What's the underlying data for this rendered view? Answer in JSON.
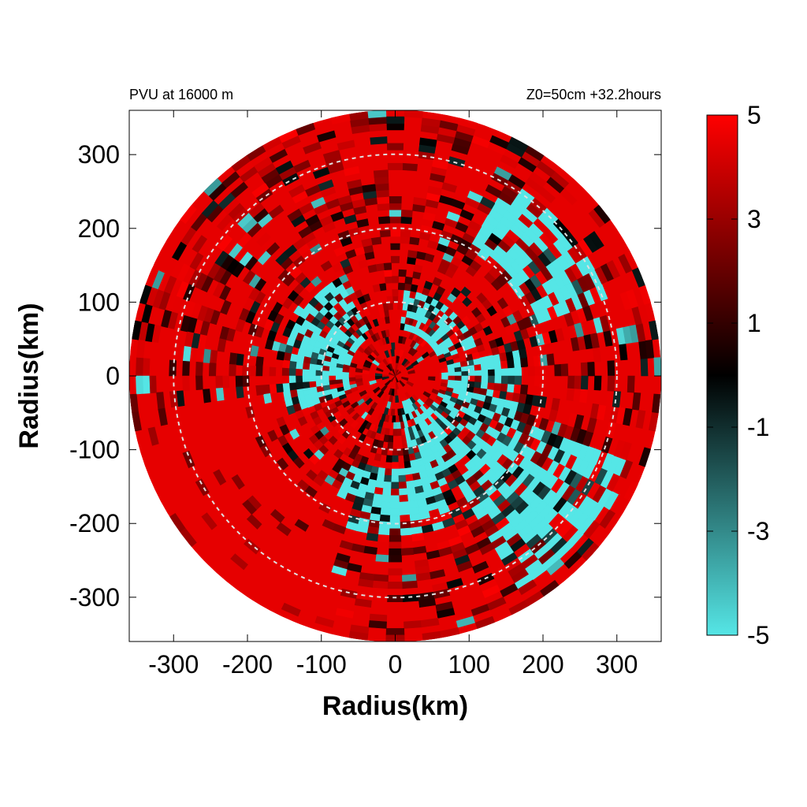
{
  "chart_data": {
    "type": "heatmap",
    "projection": "polar-in-cartesian",
    "title_left": "PVU at 16000 m",
    "title_right": "Z0=50cm  +32.2hours",
    "xlabel": "Radius(km)",
    "ylabel": "Radius(km)",
    "xlim": [
      -360,
      360
    ],
    "ylim": [
      -360,
      360
    ],
    "xticks": [
      -300,
      -200,
      -100,
      0,
      100,
      200,
      300
    ],
    "yticks": [
      -300,
      -200,
      -100,
      0,
      100,
      200,
      300
    ],
    "data_radius_km": 360,
    "reference_circles_km": [
      100,
      200,
      300
    ],
    "grid": false,
    "colorbar": {
      "min": -5,
      "max": 5,
      "ticks": [
        5,
        3,
        1,
        -1,
        -3,
        -5
      ],
      "colors": [
        {
          "value": -5,
          "hex": "#55e6e6"
        },
        {
          "value": 0,
          "hex": "#000000"
        },
        {
          "value": 5,
          "hex": "#ff0000"
        }
      ],
      "placement": "right"
    },
    "field_regions": {
      "background_value": 4.5,
      "positive_high_value": 5,
      "negative_value": -5,
      "negative_sectors": [
        {
          "theta_deg": [
            -80,
            10
          ],
          "r_km": [
            40,
            170
          ]
        },
        {
          "theta_deg": [
            -60,
            -20
          ],
          "r_km": [
            170,
            330
          ]
        },
        {
          "theta_deg": [
            -115,
            -70
          ],
          "r_km": [
            130,
            220
          ]
        },
        {
          "theta_deg": [
            20,
            85
          ],
          "r_km": [
            60,
            120
          ]
        },
        {
          "theta_deg": [
            120,
            200
          ],
          "r_km": [
            60,
            150
          ]
        },
        {
          "theta_deg": [
            20,
            60
          ],
          "r_km": [
            200,
            310
          ]
        }
      ],
      "solid_red_sectors": [
        {
          "theta_deg": [
            -45,
            30
          ],
          "r_km": [
            0,
            60
          ]
        },
        {
          "theta_deg": [
            190,
            250
          ],
          "r_km": [
            180,
            360
          ]
        }
      ]
    }
  }
}
